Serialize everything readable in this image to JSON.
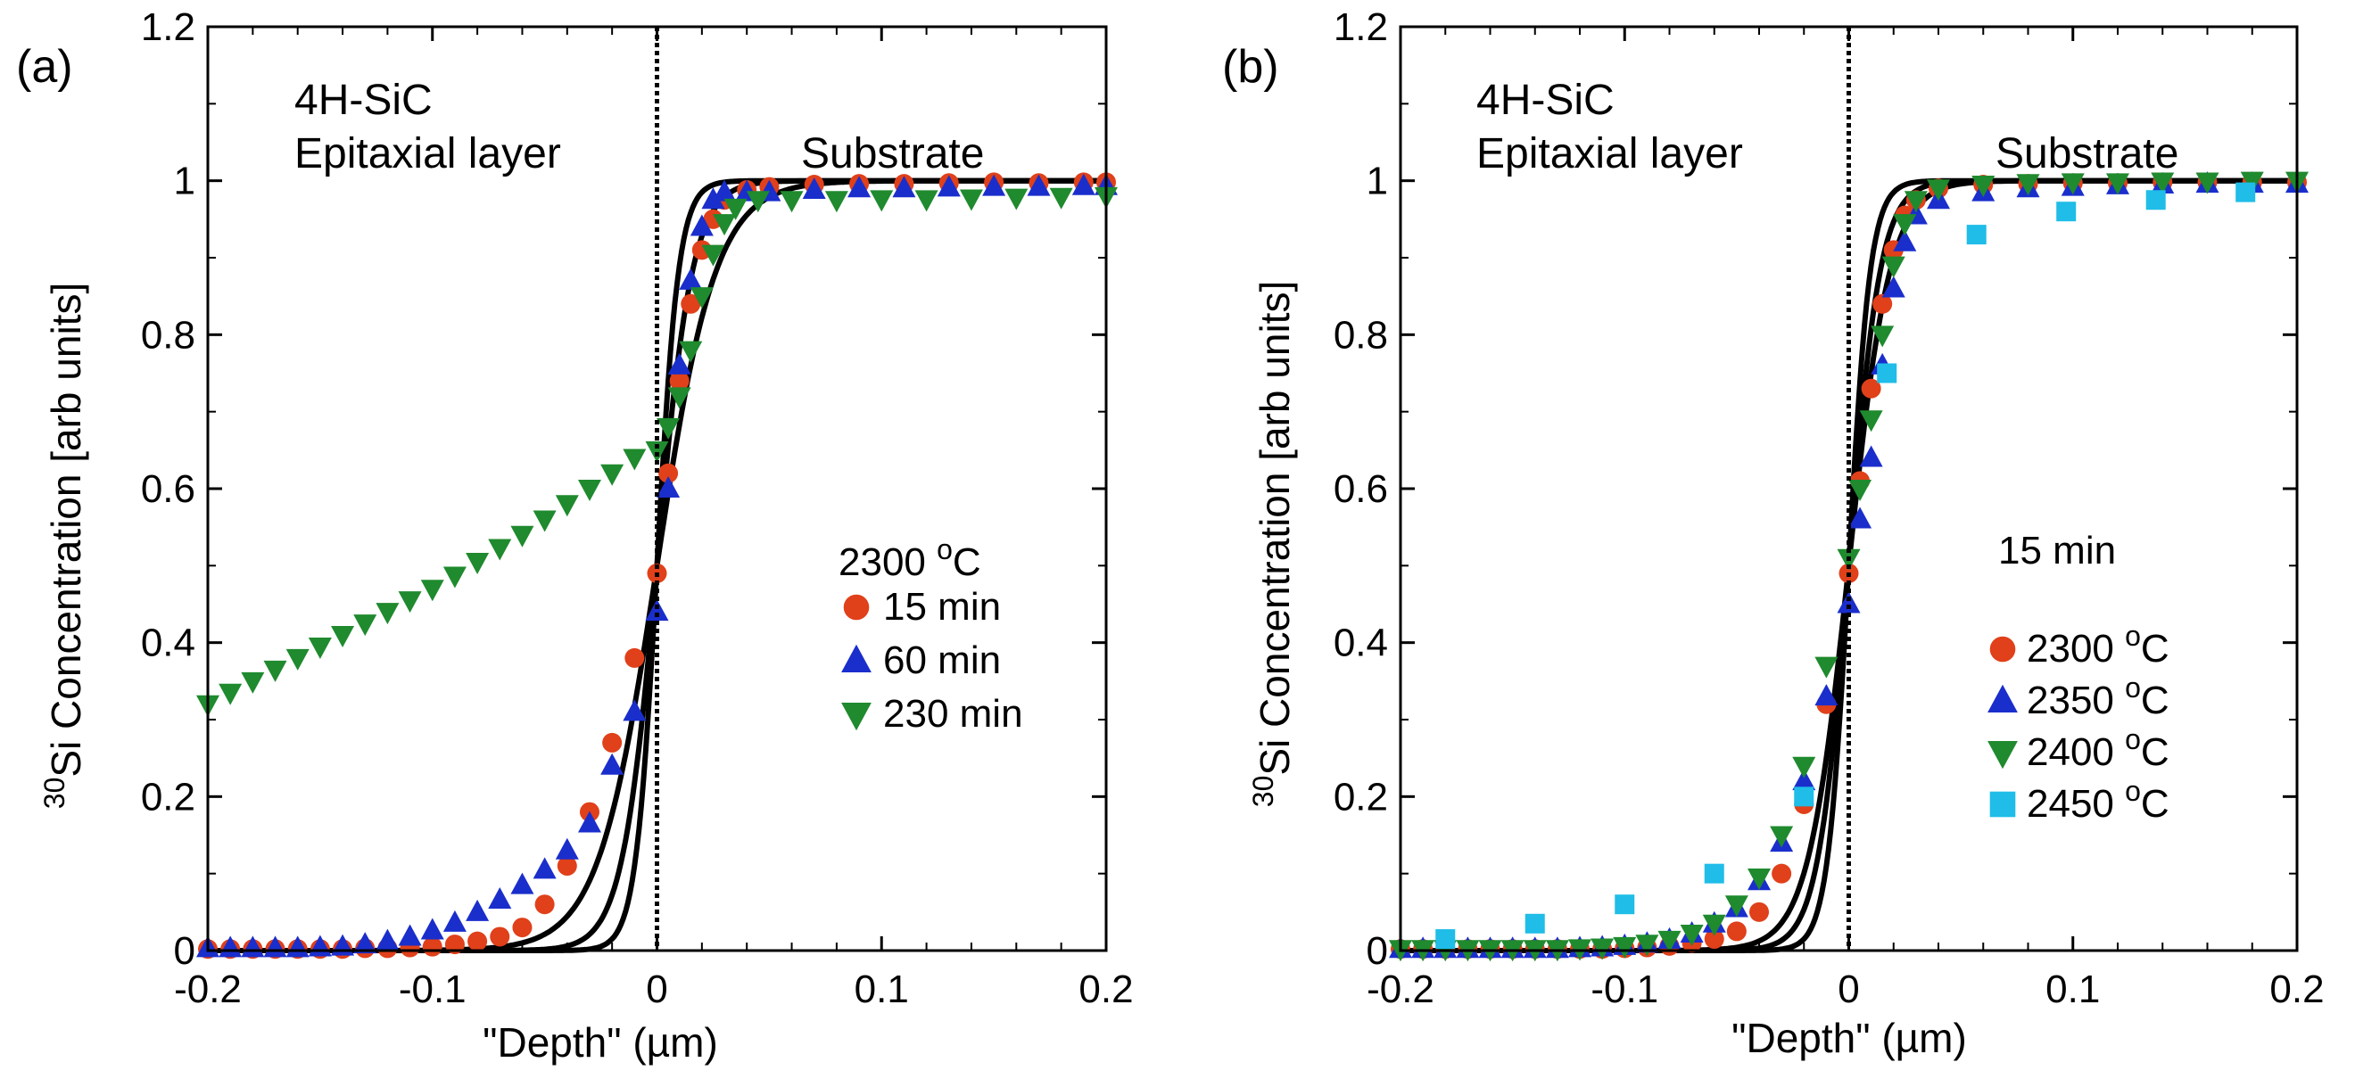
{
  "chart_data": [
    {
      "type": "scatter",
      "panel_label": "(a)",
      "xlabel": "\"Depth\" (µm)",
      "ylabel_sup": "30",
      "ylabel": "Si Concentration [arb units]",
      "xlim": [
        -0.2,
        0.2
      ],
      "ylim": [
        0,
        1.2
      ],
      "xticks": [
        "-0.2",
        "-0.1",
        "0",
        "0.1",
        "0.2"
      ],
      "xtick_values": [
        -0.2,
        -0.1,
        0,
        0.1,
        0.2
      ],
      "yticks": [
        "0",
        "0.2",
        "0.4",
        "0.6",
        "0.8",
        "1",
        "1.2"
      ],
      "ytick_values": [
        0,
        0.2,
        0.4,
        0.6,
        0.8,
        1,
        1.2
      ],
      "annotations": {
        "left_title": "4H-SiC",
        "left_subtitle": "Epitaxial layer",
        "right_title": "Substrate"
      },
      "legend_title": "2300 °C",
      "legend_title_parts": [
        "2300 ",
        "o",
        "C"
      ],
      "series": [
        {
          "name": "15 min",
          "marker": "circle",
          "color": "#e0401a",
          "points": [
            [
              -0.2,
              0.002
            ],
            [
              -0.19,
              0.002
            ],
            [
              -0.18,
              0.002
            ],
            [
              -0.17,
              0.002
            ],
            [
              -0.16,
              0.002
            ],
            [
              -0.15,
              0.002
            ],
            [
              -0.14,
              0.002
            ],
            [
              -0.13,
              0.003
            ],
            [
              -0.12,
              0.003
            ],
            [
              -0.11,
              0.004
            ],
            [
              -0.1,
              0.005
            ],
            [
              -0.09,
              0.008
            ],
            [
              -0.08,
              0.012
            ],
            [
              -0.07,
              0.018
            ],
            [
              -0.06,
              0.03
            ],
            [
              -0.05,
              0.06
            ],
            [
              -0.04,
              0.11
            ],
            [
              -0.03,
              0.18
            ],
            [
              -0.02,
              0.27
            ],
            [
              -0.01,
              0.38
            ],
            [
              0.0,
              0.49
            ],
            [
              0.005,
              0.62
            ],
            [
              0.01,
              0.74
            ],
            [
              0.015,
              0.84
            ],
            [
              0.02,
              0.91
            ],
            [
              0.025,
              0.95
            ],
            [
              0.03,
              0.975
            ],
            [
              0.04,
              0.988
            ],
            [
              0.05,
              0.992
            ],
            [
              0.07,
              0.995
            ],
            [
              0.09,
              0.996
            ],
            [
              0.11,
              0.996
            ],
            [
              0.13,
              0.997
            ],
            [
              0.15,
              0.998
            ],
            [
              0.17,
              0.997
            ],
            [
              0.19,
              0.998
            ],
            [
              0.2,
              0.998
            ]
          ]
        },
        {
          "name": "60 min",
          "marker": "triangle-up",
          "color": "#1a2ecc",
          "points": [
            [
              -0.2,
              0.003
            ],
            [
              -0.19,
              0.003
            ],
            [
              -0.18,
              0.003
            ],
            [
              -0.17,
              0.003
            ],
            [
              -0.16,
              0.003
            ],
            [
              -0.15,
              0.004
            ],
            [
              -0.14,
              0.005
            ],
            [
              -0.13,
              0.008
            ],
            [
              -0.12,
              0.012
            ],
            [
              -0.11,
              0.018
            ],
            [
              -0.1,
              0.026
            ],
            [
              -0.09,
              0.036
            ],
            [
              -0.08,
              0.05
            ],
            [
              -0.07,
              0.066
            ],
            [
              -0.06,
              0.085
            ],
            [
              -0.05,
              0.105
            ],
            [
              -0.04,
              0.13
            ],
            [
              -0.03,
              0.165
            ],
            [
              -0.02,
              0.24
            ],
            [
              -0.01,
              0.31
            ],
            [
              0.0,
              0.44
            ],
            [
              0.005,
              0.6
            ],
            [
              0.01,
              0.76
            ],
            [
              0.015,
              0.87
            ],
            [
              0.02,
              0.94
            ],
            [
              0.025,
              0.975
            ],
            [
              0.03,
              0.985
            ],
            [
              0.04,
              0.985
            ],
            [
              0.05,
              0.985
            ],
            [
              0.07,
              0.988
            ],
            [
              0.09,
              0.99
            ],
            [
              0.11,
              0.99
            ],
            [
              0.13,
              0.991
            ],
            [
              0.15,
              0.992
            ],
            [
              0.17,
              0.992
            ],
            [
              0.19,
              0.993
            ],
            [
              0.2,
              0.993
            ]
          ]
        },
        {
          "name": "230 min",
          "marker": "triangle-down",
          "color": "#1f8a2e",
          "points": [
            [
              -0.2,
              0.32
            ],
            [
              -0.19,
              0.335
            ],
            [
              -0.18,
              0.35
            ],
            [
              -0.17,
              0.365
            ],
            [
              -0.16,
              0.38
            ],
            [
              -0.15,
              0.395
            ],
            [
              -0.14,
              0.41
            ],
            [
              -0.13,
              0.425
            ],
            [
              -0.12,
              0.44
            ],
            [
              -0.11,
              0.455
            ],
            [
              -0.1,
              0.47
            ],
            [
              -0.09,
              0.487
            ],
            [
              -0.08,
              0.505
            ],
            [
              -0.07,
              0.523
            ],
            [
              -0.06,
              0.54
            ],
            [
              -0.05,
              0.56
            ],
            [
              -0.04,
              0.58
            ],
            [
              -0.03,
              0.6
            ],
            [
              -0.02,
              0.62
            ],
            [
              -0.01,
              0.64
            ],
            [
              0.0,
              0.65
            ],
            [
              0.005,
              0.68
            ],
            [
              0.01,
              0.72
            ],
            [
              0.015,
              0.78
            ],
            [
              0.02,
              0.85
            ],
            [
              0.025,
              0.905
            ],
            [
              0.03,
              0.945
            ],
            [
              0.035,
              0.965
            ],
            [
              0.045,
              0.975
            ],
            [
              0.06,
              0.975
            ],
            [
              0.08,
              0.975
            ],
            [
              0.1,
              0.976
            ],
            [
              0.12,
              0.976
            ],
            [
              0.14,
              0.977
            ],
            [
              0.16,
              0.978
            ],
            [
              0.18,
              0.979
            ],
            [
              0.2,
              0.98
            ]
          ]
        }
      ],
      "fits": [
        {
          "name": "fit-15",
          "center": 0.0,
          "width": 0.011
        },
        {
          "name": "fit-60",
          "center": 0.0,
          "width": 0.018
        },
        {
          "name": "fit-230",
          "center": 0.0,
          "width": 0.03
        }
      ]
    },
    {
      "type": "scatter",
      "panel_label": "(b)",
      "xlabel": "\"Depth\" (µm)",
      "ylabel_sup": "30",
      "ylabel": "Si Concentration [arb units]",
      "xlim": [
        -0.2,
        0.2
      ],
      "ylim": [
        0,
        1.2
      ],
      "xticks": [
        "-0.2",
        "-0.1",
        "0",
        "0.1",
        "0.2"
      ],
      "xtick_values": [
        -0.2,
        -0.1,
        0,
        0.1,
        0.2
      ],
      "yticks": [
        "0",
        "0.2",
        "0.4",
        "0.6",
        "0.8",
        "1",
        "1.2"
      ],
      "ytick_values": [
        0,
        0.2,
        0.4,
        0.6,
        0.8,
        1,
        1.2
      ],
      "annotations": {
        "left_title": "4H-SiC",
        "left_subtitle": "Epitaxial layer",
        "right_title": "Substrate"
      },
      "legend_title": "15 min",
      "series": [
        {
          "name": "2300 °C",
          "name_parts": [
            "2300 ",
            "o",
            "C"
          ],
          "marker": "circle",
          "color": "#e0401a",
          "points": [
            [
              -0.2,
              0.002
            ],
            [
              -0.19,
              0.002
            ],
            [
              -0.18,
              0.002
            ],
            [
              -0.17,
              0.002
            ],
            [
              -0.16,
              0.002
            ],
            [
              -0.15,
              0.002
            ],
            [
              -0.14,
              0.002
            ],
            [
              -0.13,
              0.002
            ],
            [
              -0.12,
              0.002
            ],
            [
              -0.11,
              0.002
            ],
            [
              -0.1,
              0.003
            ],
            [
              -0.09,
              0.004
            ],
            [
              -0.08,
              0.006
            ],
            [
              -0.07,
              0.01
            ],
            [
              -0.06,
              0.015
            ],
            [
              -0.05,
              0.025
            ],
            [
              -0.04,
              0.05
            ],
            [
              -0.03,
              0.1
            ],
            [
              -0.02,
              0.19
            ],
            [
              -0.01,
              0.32
            ],
            [
              0.0,
              0.49
            ],
            [
              0.005,
              0.61
            ],
            [
              0.01,
              0.73
            ],
            [
              0.015,
              0.84
            ],
            [
              0.02,
              0.91
            ],
            [
              0.025,
              0.955
            ],
            [
              0.03,
              0.975
            ],
            [
              0.04,
              0.99
            ],
            [
              0.06,
              0.995
            ],
            [
              0.08,
              0.996
            ],
            [
              0.1,
              0.997
            ],
            [
              0.12,
              0.997
            ],
            [
              0.14,
              0.998
            ],
            [
              0.16,
              0.998
            ],
            [
              0.18,
              0.998
            ],
            [
              0.2,
              0.998
            ]
          ]
        },
        {
          "name": "2350 °C",
          "name_parts": [
            "2350 ",
            "o",
            "C"
          ],
          "marker": "triangle-up",
          "color": "#1a2ecc",
          "points": [
            [
              -0.2,
              0.002
            ],
            [
              -0.19,
              0.002
            ],
            [
              -0.18,
              0.002
            ],
            [
              -0.17,
              0.002
            ],
            [
              -0.16,
              0.002
            ],
            [
              -0.15,
              0.002
            ],
            [
              -0.14,
              0.002
            ],
            [
              -0.13,
              0.002
            ],
            [
              -0.12,
              0.003
            ],
            [
              -0.11,
              0.004
            ],
            [
              -0.1,
              0.006
            ],
            [
              -0.09,
              0.009
            ],
            [
              -0.08,
              0.014
            ],
            [
              -0.07,
              0.022
            ],
            [
              -0.06,
              0.035
            ],
            [
              -0.05,
              0.055
            ],
            [
              -0.04,
              0.09
            ],
            [
              -0.03,
              0.14
            ],
            [
              -0.02,
              0.22
            ],
            [
              -0.01,
              0.33
            ],
            [
              0.0,
              0.45
            ],
            [
              0.005,
              0.56
            ],
            [
              0.01,
              0.64
            ],
            [
              0.015,
              0.76
            ],
            [
              0.02,
              0.86
            ],
            [
              0.025,
              0.92
            ],
            [
              0.03,
              0.955
            ],
            [
              0.04,
              0.975
            ],
            [
              0.06,
              0.985
            ],
            [
              0.08,
              0.99
            ],
            [
              0.1,
              0.992
            ],
            [
              0.12,
              0.994
            ],
            [
              0.14,
              0.995
            ],
            [
              0.16,
              0.996
            ],
            [
              0.18,
              0.996
            ],
            [
              0.2,
              0.996
            ]
          ]
        },
        {
          "name": "2400 °C",
          "name_parts": [
            "2400 ",
            "o",
            "C"
          ],
          "marker": "triangle-down",
          "color": "#1f8a2e",
          "points": [
            [
              -0.2,
              0.002
            ],
            [
              -0.19,
              0.002
            ],
            [
              -0.18,
              0.002
            ],
            [
              -0.17,
              0.002
            ],
            [
              -0.16,
              0.002
            ],
            [
              -0.15,
              0.002
            ],
            [
              -0.14,
              0.002
            ],
            [
              -0.13,
              0.002
            ],
            [
              -0.12,
              0.003
            ],
            [
              -0.11,
              0.004
            ],
            [
              -0.1,
              0.006
            ],
            [
              -0.09,
              0.009
            ],
            [
              -0.08,
              0.014
            ],
            [
              -0.07,
              0.022
            ],
            [
              -0.06,
              0.035
            ],
            [
              -0.05,
              0.06
            ],
            [
              -0.04,
              0.095
            ],
            [
              -0.03,
              0.15
            ],
            [
              -0.02,
              0.24
            ],
            [
              -0.01,
              0.37
            ],
            [
              0.0,
              0.51
            ],
            [
              0.005,
              0.6
            ],
            [
              0.01,
              0.69
            ],
            [
              0.015,
              0.8
            ],
            [
              0.02,
              0.89
            ],
            [
              0.025,
              0.945
            ],
            [
              0.03,
              0.975
            ],
            [
              0.04,
              0.99
            ],
            [
              0.06,
              0.995
            ],
            [
              0.08,
              0.997
            ],
            [
              0.1,
              0.998
            ],
            [
              0.12,
              0.998
            ],
            [
              0.14,
              0.999
            ],
            [
              0.16,
              0.999
            ],
            [
              0.18,
              1.0
            ],
            [
              0.2,
              1.0
            ]
          ]
        },
        {
          "name": "2450 °C",
          "name_parts": [
            "2450 ",
            "o",
            "C"
          ],
          "marker": "square",
          "color": "#1fbde8",
          "points": [
            [
              -0.18,
              0.015
            ],
            [
              -0.14,
              0.035
            ],
            [
              -0.1,
              0.06
            ],
            [
              -0.06,
              0.1
            ],
            [
              -0.02,
              0.2
            ],
            [
              0.017,
              0.75
            ],
            [
              0.057,
              0.93
            ],
            [
              0.097,
              0.96
            ],
            [
              0.137,
              0.975
            ],
            [
              0.177,
              0.985
            ]
          ]
        }
      ],
      "fits": [
        {
          "name": "fit-2300",
          "center": 0.0,
          "width": 0.011
        },
        {
          "name": "fit-2350",
          "center": 0.0,
          "width": 0.016
        },
        {
          "name": "fit-2400",
          "center": 0.0,
          "width": 0.021
        }
      ]
    }
  ]
}
